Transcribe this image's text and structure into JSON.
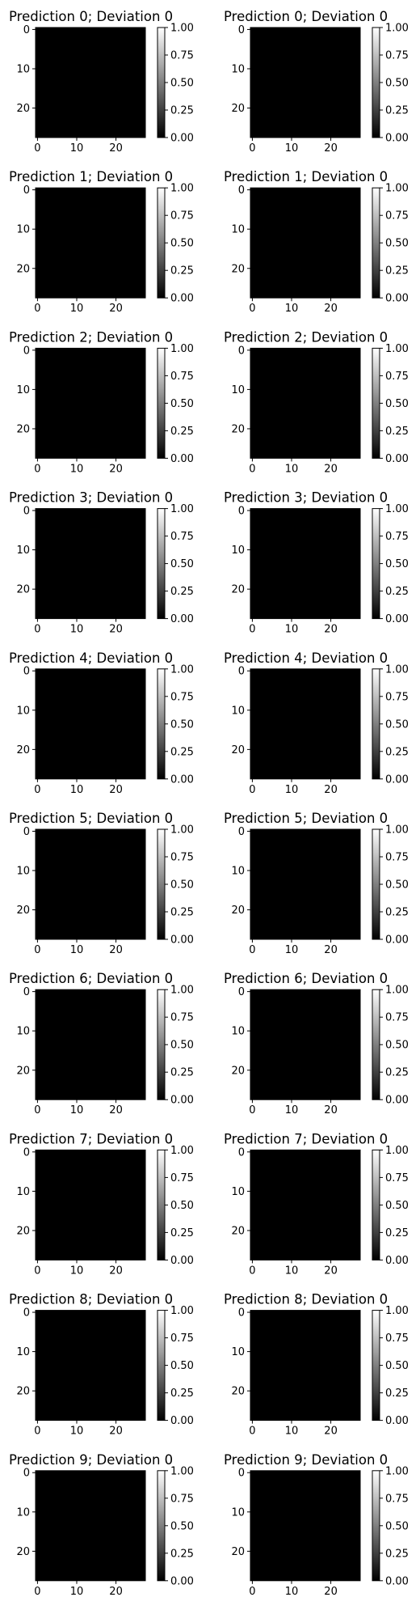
{
  "chart_data": {
    "type": "heatmap",
    "layout": "grid",
    "rows": 10,
    "cols": 2,
    "colormap": "gray",
    "image_size": [
      28,
      28
    ],
    "x_ticks": [
      0,
      10,
      20
    ],
    "y_ticks": [
      0,
      10,
      20
    ],
    "colorbar_ticks": [
      "0.00",
      "0.25",
      "0.50",
      "0.75",
      "1.00"
    ],
    "colorbar_range": [
      0.0,
      1.0
    ],
    "panels": [
      {
        "title": "Prediction 0; Deviation 0",
        "digit": "0",
        "prediction": 0,
        "deviation": 0
      },
      {
        "title": "Prediction 0; Deviation 0",
        "digit": "0",
        "prediction": 0,
        "deviation": 0
      },
      {
        "title": "Prediction 1; Deviation 0",
        "digit": "1",
        "prediction": 1,
        "deviation": 0
      },
      {
        "title": "Prediction 1; Deviation 0",
        "digit": "1",
        "prediction": 1,
        "deviation": 0
      },
      {
        "title": "Prediction 2; Deviation 0",
        "digit": "2",
        "prediction": 2,
        "deviation": 0
      },
      {
        "title": "Prediction 2; Deviation 0",
        "digit": "2",
        "prediction": 2,
        "deviation": 0
      },
      {
        "title": "Prediction 3; Deviation 0",
        "digit": "3",
        "prediction": 3,
        "deviation": 0
      },
      {
        "title": "Prediction 3; Deviation 0",
        "digit": "3",
        "prediction": 3,
        "deviation": 0
      },
      {
        "title": "Prediction 4; Deviation 0",
        "digit": "4",
        "prediction": 4,
        "deviation": 0
      },
      {
        "title": "Prediction 4; Deviation 0",
        "digit": "4",
        "prediction": 4,
        "deviation": 0
      },
      {
        "title": "Prediction 5; Deviation 0",
        "digit": "5",
        "prediction": 5,
        "deviation": 0
      },
      {
        "title": "Prediction 5; Deviation 0",
        "digit": "5",
        "prediction": 5,
        "deviation": 0
      },
      {
        "title": "Prediction 6; Deviation 0",
        "digit": "6",
        "prediction": 6,
        "deviation": 0
      },
      {
        "title": "Prediction 6; Deviation 0",
        "digit": "6",
        "prediction": 6,
        "deviation": 0
      },
      {
        "title": "Prediction 7; Deviation 0",
        "digit": "7",
        "prediction": 7,
        "deviation": 0
      },
      {
        "title": "Prediction 7; Deviation 0",
        "digit": "7",
        "prediction": 7,
        "deviation": 0
      },
      {
        "title": "Prediction 8; Deviation 0",
        "digit": "8",
        "prediction": 8,
        "deviation": 0
      },
      {
        "title": "Prediction 8; Deviation 0",
        "digit": "8",
        "prediction": 8,
        "deviation": 0
      },
      {
        "title": "Prediction 9; Deviation 0",
        "digit": "9",
        "prediction": 9,
        "deviation": 0
      },
      {
        "title": "Prediction 9; Deviation 0",
        "digit": "9",
        "prediction": 9,
        "deviation": 0
      }
    ]
  }
}
